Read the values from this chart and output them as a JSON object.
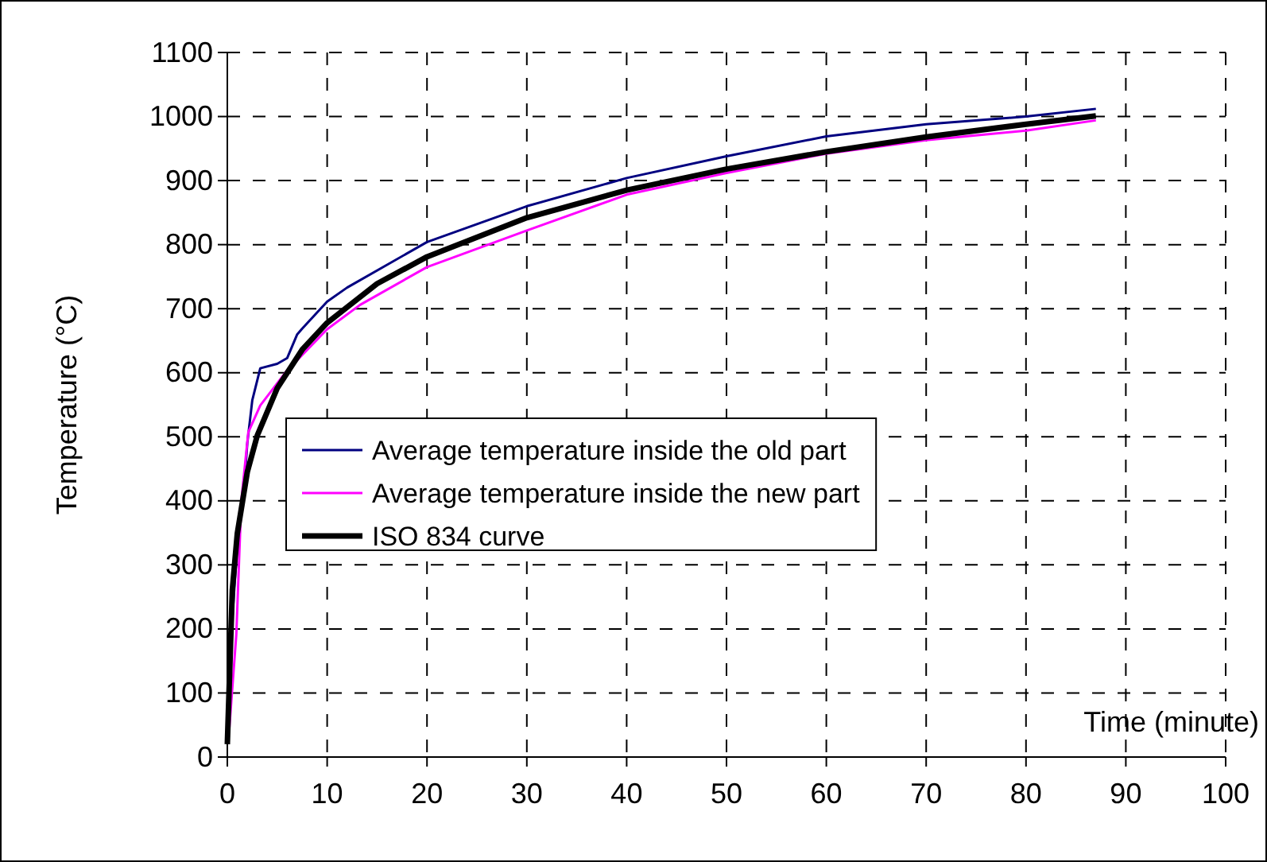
{
  "chart_data": {
    "type": "line",
    "xlabel": "Time (minute)",
    "ylabel": "Temperature (°C)",
    "xlim": [
      0,
      100
    ],
    "xticks": [
      0,
      10,
      20,
      30,
      40,
      50,
      60,
      70,
      80,
      90,
      100
    ],
    "ylim": [
      0,
      1100
    ],
    "yticks": [
      0,
      100,
      200,
      300,
      400,
      500,
      600,
      700,
      800,
      900,
      1000,
      1100
    ],
    "grid": true,
    "legend": "left",
    "line_style": "solid",
    "marker": "none",
    "series": [
      {
        "name": "Average temperature inside the old part",
        "color": "#000080",
        "x": [
          0,
          0.5,
          1,
          1.7,
          2,
          2.5,
          3.3,
          5,
          6,
          7,
          7.5,
          10,
          12,
          20,
          30,
          40,
          50,
          60,
          70,
          80,
          87
        ],
        "values": [
          50,
          216,
          332,
          425,
          490,
          557,
          607,
          614,
          623,
          660,
          669,
          711,
          733,
          804,
          860,
          904,
          938,
          969,
          988,
          1000,
          1012
        ]
      },
      {
        "name": "Average temperature inside the new part",
        "color": "#ff00ff",
        "x": [
          0.2,
          0.9,
          1.4,
          2.1,
          3.3,
          5.9,
          10,
          13.3,
          20,
          30,
          40,
          50,
          60,
          70,
          80,
          87
        ],
        "values": [
          45,
          191,
          400,
          507,
          549,
          602,
          668,
          706,
          765,
          822,
          878,
          912,
          942,
          963,
          978,
          994
        ]
      },
      {
        "name": "ISO 834 curve",
        "color": "#000000",
        "x": [
          0,
          0.5,
          1,
          2,
          3,
          5,
          7.5,
          10,
          15,
          20,
          30,
          40,
          50,
          60,
          70,
          80,
          87
        ],
        "values": [
          20,
          261,
          349,
          445,
          502,
          576,
          636,
          678,
          739,
          781,
          842,
          885,
          918,
          945,
          968,
          988,
          1001
        ]
      }
    ]
  }
}
